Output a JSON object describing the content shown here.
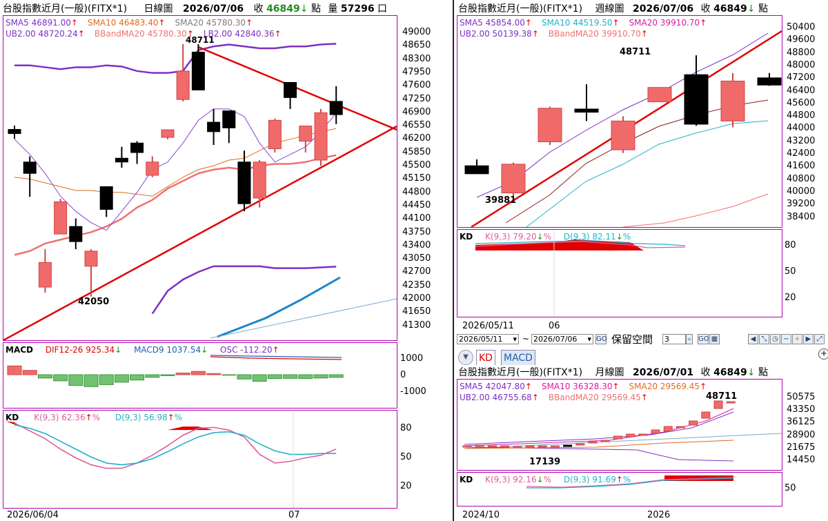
{
  "left": {
    "header": {
      "name": "台股指數近月(一般)(FITX*1)",
      "period": "日線圖",
      "date": "2026/07/06",
      "close_label": "收",
      "close": "46849",
      "close_arrow": "↓",
      "unit": "點",
      "vol_label": "量",
      "volume": "57296",
      "vol_unit": "口"
    },
    "legend_row1": [
      {
        "text": "SMA5 46891.00",
        "color": "#7d2fc2",
        "arrow": "↑"
      },
      {
        "text": "SMA10 46483.40",
        "color": "#e06a1e",
        "arrow": "↑"
      },
      {
        "text": "SMA20 45780.30",
        "color": "#7b7b7b",
        "arrow": "↑"
      }
    ],
    "legend_row2": [
      {
        "text": "UB2.00 48720.24",
        "color": "#7d2fc2",
        "arrow": "↑"
      },
      {
        "text": "BBandMA20 45780.30",
        "color": "#f07070",
        "arrow": "↑"
      },
      {
        "text": "LB2.00 42840.36",
        "color": "#7d2fc2",
        "arrow": "↑"
      }
    ],
    "y_ticks": [
      "49000",
      "48650",
      "48300",
      "47950",
      "47600",
      "47250",
      "46900",
      "46550",
      "46200",
      "45850",
      "45500",
      "45150",
      "44800",
      "44450",
      "44100",
      "43750",
      "43400",
      "43050",
      "42700",
      "42350",
      "42000",
      "41650",
      "41300"
    ],
    "high_label": "48711",
    "low_label": "42050",
    "macd": {
      "title": "MACD",
      "dif": "DIF12-26 925.34",
      "dif_arrow": "↓",
      "macd9": "MACD9 1037.54",
      "macd9_arrow": "↓",
      "osc": "OSC -112.20",
      "osc_arrow": "↑",
      "ticks": [
        "1000",
        "0",
        "-1000"
      ]
    },
    "kd": {
      "title": "KD",
      "k": "K(9,3) 62.36",
      "k_arrow": "↑",
      "k_pct": "%",
      "d": "D(9,3) 56.98",
      "d_arrow": "↑",
      "d_pct": "%",
      "ticks": [
        "80",
        "50",
        "20"
      ]
    },
    "x_labels": [
      "2026/06/04",
      "07"
    ],
    "candles": [
      {
        "o": 46460,
        "h": 46560,
        "l": 46210,
        "c": 46350
      },
      {
        "o": 45600,
        "h": 45750,
        "l": 44680,
        "c": 45300
      },
      {
        "o": 42300,
        "h": 43300,
        "l": 42150,
        "c": 42950
      },
      {
        "o": 43700,
        "h": 44630,
        "l": 43700,
        "c": 44550
      },
      {
        "o": 43900,
        "h": 44110,
        "l": 43300,
        "c": 43500
      },
      {
        "o": 42850,
        "h": 43300,
        "l": 42050,
        "c": 43250
      },
      {
        "o": 44950,
        "h": 44950,
        "l": 44150,
        "c": 44350
      },
      {
        "o": 45700,
        "h": 46000,
        "l": 45450,
        "c": 45600
      },
      {
        "o": 46100,
        "h": 46150,
        "l": 45550,
        "c": 45850
      },
      {
        "o": 45250,
        "h": 45750,
        "l": 45200,
        "c": 45600
      },
      {
        "o": 46250,
        "h": 46450,
        "l": 46200,
        "c": 46450
      },
      {
        "o": 47250,
        "h": 48711,
        "l": 47200,
        "c": 48000
      },
      {
        "o": 48500,
        "h": 48711,
        "l": 47500,
        "c": 47500
      },
      {
        "o": 46650,
        "h": 47000,
        "l": 46050,
        "c": 46400
      },
      {
        "o": 46950,
        "h": 46950,
        "l": 46100,
        "c": 46500
      },
      {
        "o": 45600,
        "h": 45900,
        "l": 44300,
        "c": 44500
      },
      {
        "o": 44650,
        "h": 45650,
        "l": 44400,
        "c": 45600
      },
      {
        "o": 45950,
        "h": 46750,
        "l": 45850,
        "c": 46700
      },
      {
        "o": 47700,
        "h": 47650,
        "l": 47000,
        "c": 47300
      },
      {
        "o": 46150,
        "h": 46550,
        "l": 45850,
        "c": 46550
      },
      {
        "o": 45650,
        "h": 47000,
        "l": 45500,
        "c": 46900
      },
      {
        "o": 47200,
        "h": 47600,
        "l": 46600,
        "c": 46850
      }
    ],
    "macd_bars": [
      530,
      260,
      -200,
      -370,
      -650,
      -720,
      -600,
      -450,
      -320,
      -160,
      -60,
      100,
      200,
      70,
      -30,
      -260,
      -400,
      -230,
      -220,
      -230,
      -200,
      -160
    ]
  },
  "right_top": {
    "header": {
      "name": "台股指數近月(一般)(FITX*1)",
      "period": "週線圖",
      "date": "2026/07/06",
      "close_label": "收",
      "close": "46849",
      "close_arrow": "↓",
      "unit": "點"
    },
    "legend_row1": [
      {
        "text": "SMA5 45854.00",
        "color": "#7d2fc2",
        "arrow": "↑"
      },
      {
        "text": "SMA10 44519.50",
        "color": "#20b2c8",
        "arrow": "↑"
      },
      {
        "text": "SMA20 39910.70",
        "color": "#d81ba0",
        "arrow": "↑"
      }
    ],
    "legend_row2": [
      {
        "text": "UB2.00 50139.38",
        "color": "#7d2fc2",
        "arrow": "↑"
      },
      {
        "text": "BBandMA20 39910.70",
        "color": "#f07070",
        "arrow": "↑"
      }
    ],
    "y_ticks": [
      "50400",
      "49600",
      "48800",
      "48000",
      "47200",
      "46400",
      "45600",
      "44800",
      "44000",
      "43200",
      "42400",
      "41600",
      "40800",
      "40000",
      "39200",
      "38400"
    ],
    "high_label": "48711",
    "low_label": "39881",
    "kd": {
      "title": "KD",
      "k": "K(9,3) 79.20",
      "k_arrow": "↓",
      "k_pct": "%",
      "d": "D(9,3) 82.11",
      "d_arrow": "↓",
      "d_pct": "%",
      "ticks": [
        "80",
        "50",
        "20"
      ]
    },
    "x_labels": [
      "2026/05/11",
      "06"
    ],
    "candles": [
      {
        "o": 41800,
        "h": 42200,
        "l": 41300,
        "c": 41300
      },
      {
        "o": 40100,
        "h": 42000,
        "l": 39881,
        "c": 41900
      },
      {
        "o": 43300,
        "h": 45500,
        "l": 43100,
        "c": 45400
      },
      {
        "o": 45350,
        "h": 46900,
        "l": 44600,
        "c": 45150
      },
      {
        "o": 42800,
        "h": 44900,
        "l": 42600,
        "c": 44600
      },
      {
        "o": 45800,
        "h": 46700,
        "l": 45800,
        "c": 46700
      },
      {
        "o": 47500,
        "h": 48711,
        "l": 44300,
        "c": 44400
      },
      {
        "o": 44600,
        "h": 47600,
        "l": 44200,
        "c": 47100
      },
      {
        "o": 47300,
        "h": 47600,
        "l": 46800,
        "c": 46849
      }
    ]
  },
  "controls": {
    "from": "2026/05/11",
    "sep": "~",
    "to": "2026/07/06",
    "keep_label": "保留空間",
    "keep_value": "3"
  },
  "tabs": [
    "KD",
    "MACD"
  ],
  "right_bottom": {
    "header": {
      "name": "台股指數近月(一般)(FITX*1)",
      "period": "月線圖",
      "date": "2026/07/01",
      "close_label": "收",
      "close": "46849",
      "close_arrow": "↓",
      "unit": "點"
    },
    "legend_row1": [
      {
        "text": "SMA5 42047.80",
        "color": "#7d2fc2",
        "arrow": "↑"
      },
      {
        "text": "SMA10 36328.30",
        "color": "#d81ba0",
        "arrow": "↑"
      },
      {
        "text": "SMA20 29569.45",
        "color": "#e06a1e",
        "arrow": "↑"
      }
    ],
    "legend_row2": [
      {
        "text": "UB2.00 46755.68",
        "color": "#7d2fc2",
        "arrow": "↑"
      },
      {
        "text": "BBandMA20 29569.45",
        "color": "#f07070",
        "arrow": "↑"
      }
    ],
    "y_ticks": [
      "50575",
      "43350",
      "36125",
      "28900",
      "21675",
      "14450"
    ],
    "high_label": "48711",
    "low_label": "17139",
    "kd": {
      "title": "KD",
      "k": "K(9,3) 92.16",
      "k_arrow": "↓",
      "k_pct": "%",
      "d": "D(9,3) 91.69",
      "d_arrow": "↑",
      "d_pct": "%",
      "ticks": [
        "50"
      ]
    },
    "x_labels": [
      "2024/10",
      "2026"
    ]
  },
  "colors": {
    "up": "#f06a6a",
    "down": "#000000",
    "frame": "#b000b0",
    "trend": "#e00000",
    "green": "#1e8c1e",
    "red": "#e00000"
  }
}
